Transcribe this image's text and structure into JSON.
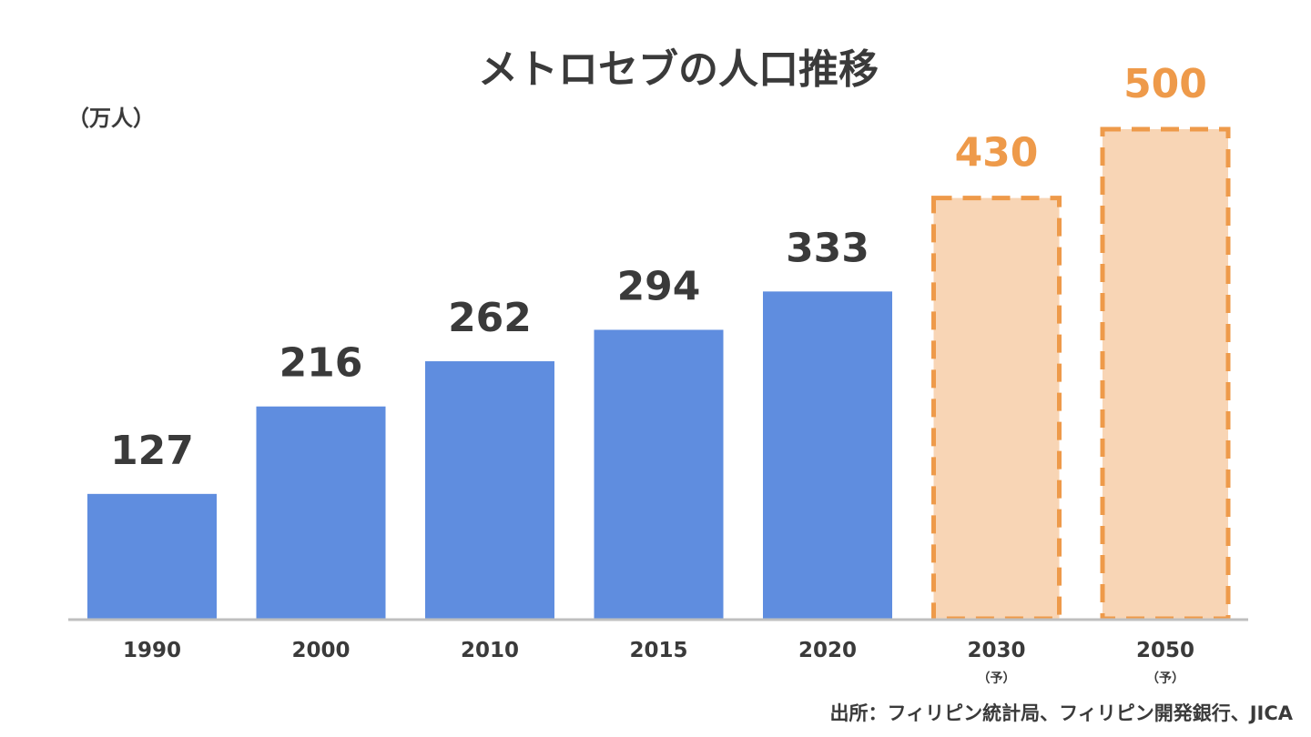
{
  "chart_data": {
    "type": "bar",
    "title": "メトロセブの人口推移",
    "ylabel": "（万人）",
    "categories": [
      "1990",
      "2000",
      "2010",
      "2015",
      "2020",
      "2030",
      "2050"
    ],
    "category_notes": [
      "",
      "",
      "",
      "",
      "",
      "（予）",
      "（予）"
    ],
    "values": [
      127,
      216,
      262,
      294,
      333,
      430,
      500
    ],
    "projected": [
      false,
      false,
      false,
      false,
      false,
      true,
      true
    ],
    "ylim": [
      0,
      500
    ],
    "grid": false,
    "colors": {
      "actual": "#5f8ddf",
      "projected_fill": "#f8d5b5",
      "projected_border": "#ee9a4a",
      "actual_label": "#3a3a3a",
      "projected_label": "#ee9a4a",
      "axis": "#bfbfbf"
    },
    "source": "出所：フィリピン統計局、フィリピン開発銀行、JICA"
  }
}
